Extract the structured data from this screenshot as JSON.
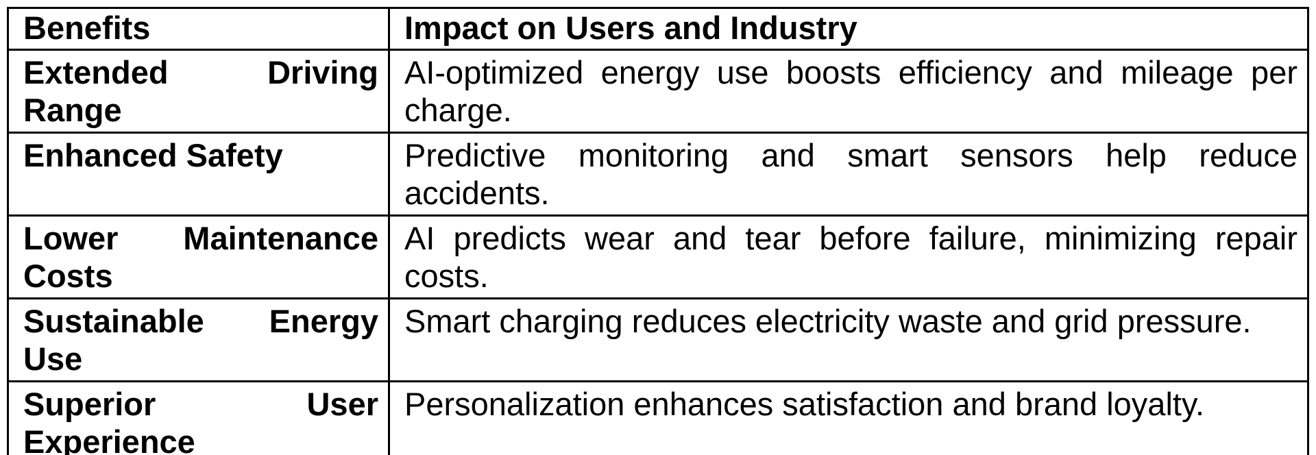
{
  "table": {
    "headers": {
      "benefits": "Benefits",
      "impact": "Impact on Users and Industry"
    },
    "rows": [
      {
        "benefit": "Extended Driving Range",
        "impact": "AI-optimized energy use boosts efficiency and mileage per charge."
      },
      {
        "benefit": "Enhanced Safety",
        "impact": "Predictive monitoring and smart sensors help reduce accidents."
      },
      {
        "benefit": "Lower Maintenance Costs",
        "impact": "AI predicts wear and tear before failure, minimizing repair costs."
      },
      {
        "benefit": "Sustainable Energy Use",
        "impact": "Smart charging reduces electricity waste and grid pressure."
      },
      {
        "benefit": "Superior User Experience",
        "impact": "Personalization enhances satisfaction and brand loyalty."
      }
    ],
    "colors": {
      "border": "#000000",
      "text": "#000000",
      "background": "#ffffff"
    }
  }
}
